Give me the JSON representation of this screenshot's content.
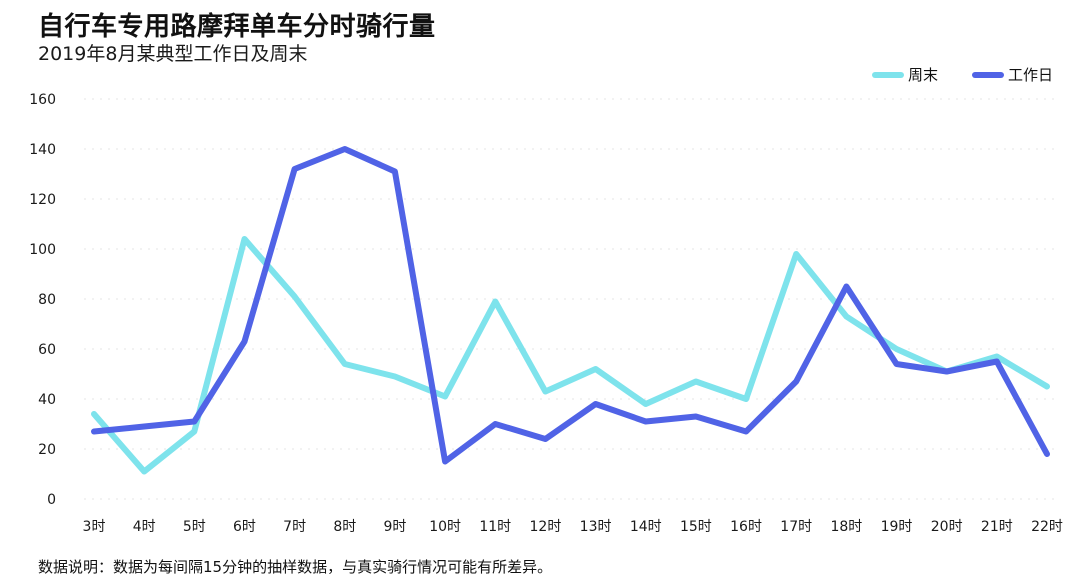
{
  "header": {
    "title": "自行车专用路摩拜单车分时骑行量",
    "subtitle": "2019年8月某典型工作日及周末"
  },
  "footnote": "数据说明：数据为每间隔15分钟的抽样数据，与真实骑行情况可能有所差异。",
  "chart_data": {
    "type": "line",
    "title": "自行车专用路摩拜单车分时骑行量",
    "subtitle": "2019年8月某典型工作日及周末",
    "categories": [
      "3时",
      "4时",
      "5时",
      "6时",
      "7时",
      "8时",
      "9时",
      "10时",
      "11时",
      "12时",
      "13时",
      "14时",
      "15时",
      "16时",
      "17时",
      "18时",
      "19时",
      "20时",
      "21时",
      "22时"
    ],
    "series": [
      {
        "name": "周末",
        "color": "#7ee3ec",
        "values": [
          34,
          11,
          27,
          104,
          81,
          54,
          49,
          41,
          79,
          43,
          52,
          38,
          47,
          40,
          98,
          73,
          60,
          51,
          57,
          45
        ]
      },
      {
        "name": "工作日",
        "color": "#5063e6",
        "values": [
          27,
          29,
          31,
          63,
          132,
          140,
          131,
          15,
          30,
          24,
          38,
          31,
          33,
          27,
          47,
          85,
          54,
          51,
          55,
          18
        ]
      }
    ],
    "yticks": [
      0,
      20,
      40,
      60,
      80,
      100,
      120,
      140,
      160
    ],
    "ylim": [
      0,
      160
    ],
    "xlabel": "",
    "ylabel": "",
    "grid": true,
    "legend": "top-right"
  }
}
